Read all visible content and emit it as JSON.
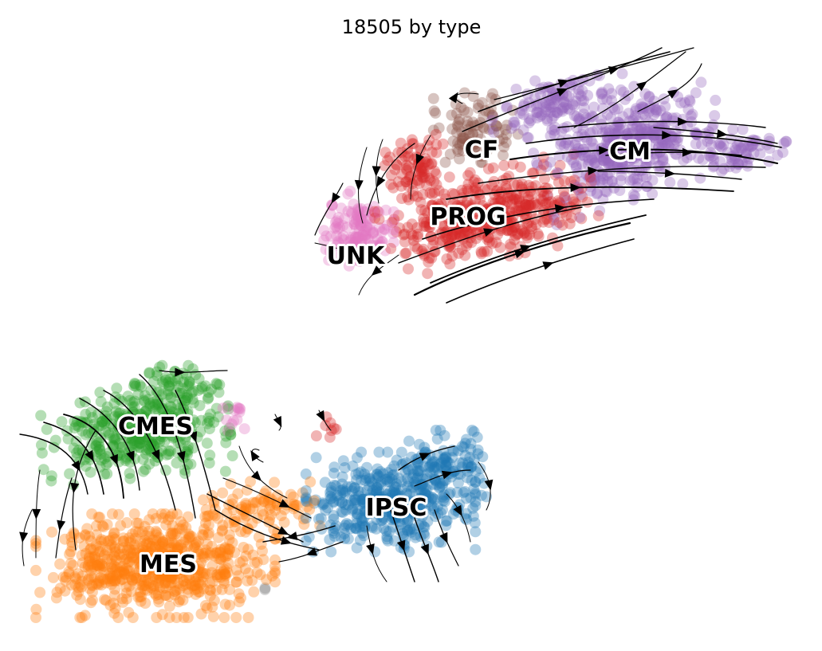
{
  "chart_data": {
    "type": "scatter",
    "title": "18505 by type",
    "xlabel": "",
    "ylabel": "",
    "axes_visible": false,
    "grid": false,
    "overlay": "velocity streamlines (black, with arrowheads)",
    "series": [
      {
        "name": "CM",
        "color": "#9467bd",
        "label_shown": "CM"
      },
      {
        "name": "CF",
        "color": "#8c564b",
        "label_shown": "CF"
      },
      {
        "name": "PROG",
        "color": "#d62728",
        "label_shown": "PROG"
      },
      {
        "name": "UNK",
        "color": "#e377c2",
        "label_shown": "UNK"
      },
      {
        "name": "CMES",
        "color": "#2ca02c",
        "label_shown": "CMES"
      },
      {
        "name": "MES",
        "color": "#ff7f0e",
        "label_shown": "MES"
      },
      {
        "name": "IPSC",
        "color": "#1f77b4",
        "label_shown": "IPSC"
      }
    ],
    "extra_colors": {
      "grey": "#7f7f7f"
    }
  }
}
